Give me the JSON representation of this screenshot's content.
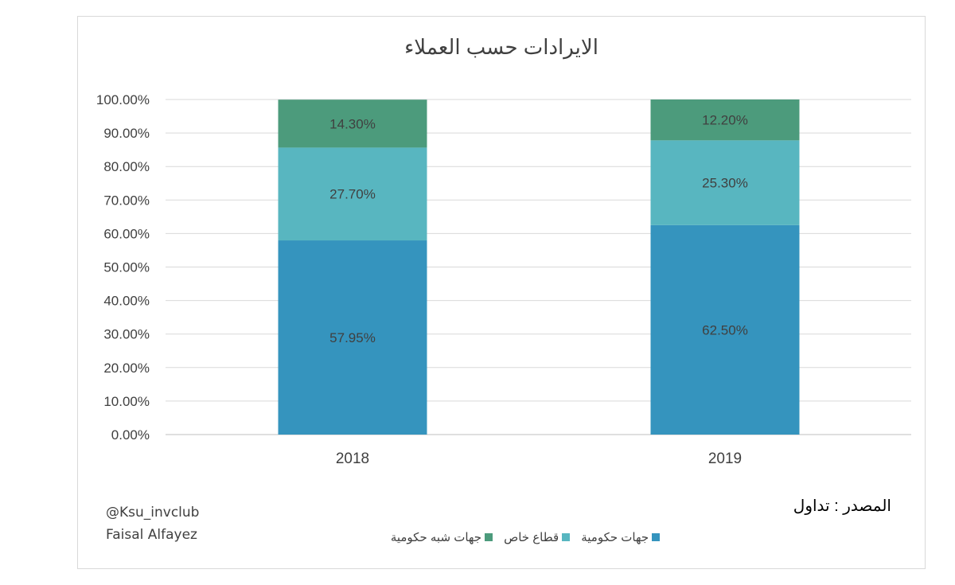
{
  "chart_data": {
    "type": "bar",
    "stacked": true,
    "title": "الايرادات حسب العملاء",
    "categories": [
      "2018",
      "2019"
    ],
    "ylim": [
      0,
      1
    ],
    "yticks": [
      "0.00%",
      "10.00%",
      "20.00%",
      "30.00%",
      "40.00%",
      "50.00%",
      "60.00%",
      "70.00%",
      "80.00%",
      "90.00%",
      "100.00%"
    ],
    "grid": true,
    "legend_position": "bottom",
    "series": [
      {
        "name": "جهات حكومية",
        "color": "#3594be",
        "values": [
          0.5795,
          0.625
        ],
        "labels": [
          "57.95%",
          "62.50%"
        ]
      },
      {
        "name": "قطاع خاص",
        "color": "#58b6c0",
        "values": [
          0.277,
          0.253
        ],
        "labels": [
          "27.70%",
          "25.30%"
        ]
      },
      {
        "name": "جهات شبه حكومية",
        "color": "#4c9b7c",
        "values": [
          0.143,
          0.122
        ],
        "labels": [
          "14.30%",
          "12.20%"
        ]
      }
    ]
  },
  "source_note": "المصدر : تداول",
  "watermark": {
    "handle": "@Ksu_invclub",
    "author": "Faisal Alfayez"
  }
}
